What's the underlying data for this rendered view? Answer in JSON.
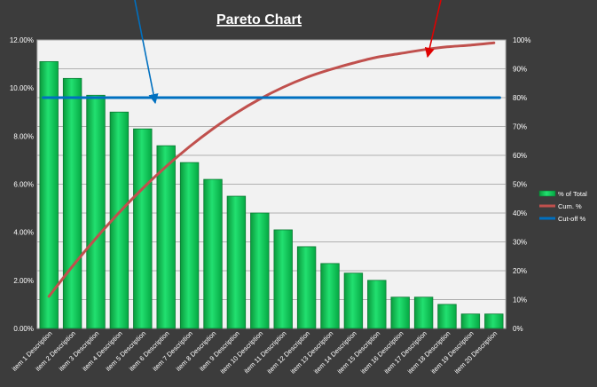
{
  "chart_data": {
    "type": "bar",
    "title": "Pareto Chart",
    "categories": [
      "item 1 Description",
      "item 2 Description",
      "item 3 Description",
      "item 4 Description",
      "item 5 Description",
      "item 6 Description",
      "item 7 Description",
      "item 8 Description",
      "item 9 Description",
      "item 10 Description",
      "item 11 Description",
      "item 12 Description",
      "item 13 Description",
      "item 14 Description",
      "item 15 Description",
      "item 16 Description",
      "item 17 Description",
      "item 18 Description",
      "item 19 Description",
      "item 20 Description"
    ],
    "series": [
      {
        "name": "% of Total",
        "type": "bar",
        "axis": "left",
        "color": "#00c050",
        "values": [
          11.1,
          10.4,
          9.7,
          9.0,
          8.3,
          7.6,
          6.9,
          6.2,
          5.5,
          4.8,
          4.1,
          3.4,
          2.7,
          2.3,
          2.0,
          1.3,
          1.3,
          1.0,
          0.6,
          0.6
        ]
      },
      {
        "name": "Cum. %",
        "type": "line",
        "axis": "right",
        "color": "#c0504d",
        "values": [
          11.1,
          21.5,
          31.2,
          40.2,
          48.5,
          56.1,
          63.0,
          69.2,
          74.7,
          79.5,
          83.6,
          87.0,
          89.7,
          92.0,
          94.0,
          95.3,
          96.6,
          97.6,
          98.2,
          99.0
        ]
      },
      {
        "name": "Cut-off %",
        "type": "line",
        "axis": "right",
        "color": "#0070c0",
        "values": [
          80,
          80,
          80,
          80,
          80,
          80,
          80,
          80,
          80,
          80,
          80,
          80,
          80,
          80,
          80,
          80,
          80,
          80,
          80,
          80
        ]
      }
    ],
    "y_left": {
      "range": [
        0,
        12
      ],
      "ticks": [
        "0.00%",
        "2.00%",
        "4.00%",
        "6.00%",
        "8.00%",
        "10.00%",
        "12.00%"
      ]
    },
    "y_right": {
      "range": [
        0,
        100
      ],
      "ticks": [
        "0%",
        "10%",
        "20%",
        "30%",
        "40%",
        "50%",
        "60%",
        "70%",
        "80%",
        "90%",
        "100%"
      ]
    },
    "grid": true,
    "legend_position": "right",
    "annotations": [
      {
        "type": "arrow",
        "color": "#0070c0",
        "points_to": "Cut-off %"
      },
      {
        "type": "arrow",
        "color": "#e00000",
        "points_to": "Cum. %"
      }
    ]
  },
  "colors": {
    "background": "#3c3c3c",
    "plot_area": "#f2f2f2",
    "gridline": "#9a9a9a",
    "text": "#ffffff"
  }
}
